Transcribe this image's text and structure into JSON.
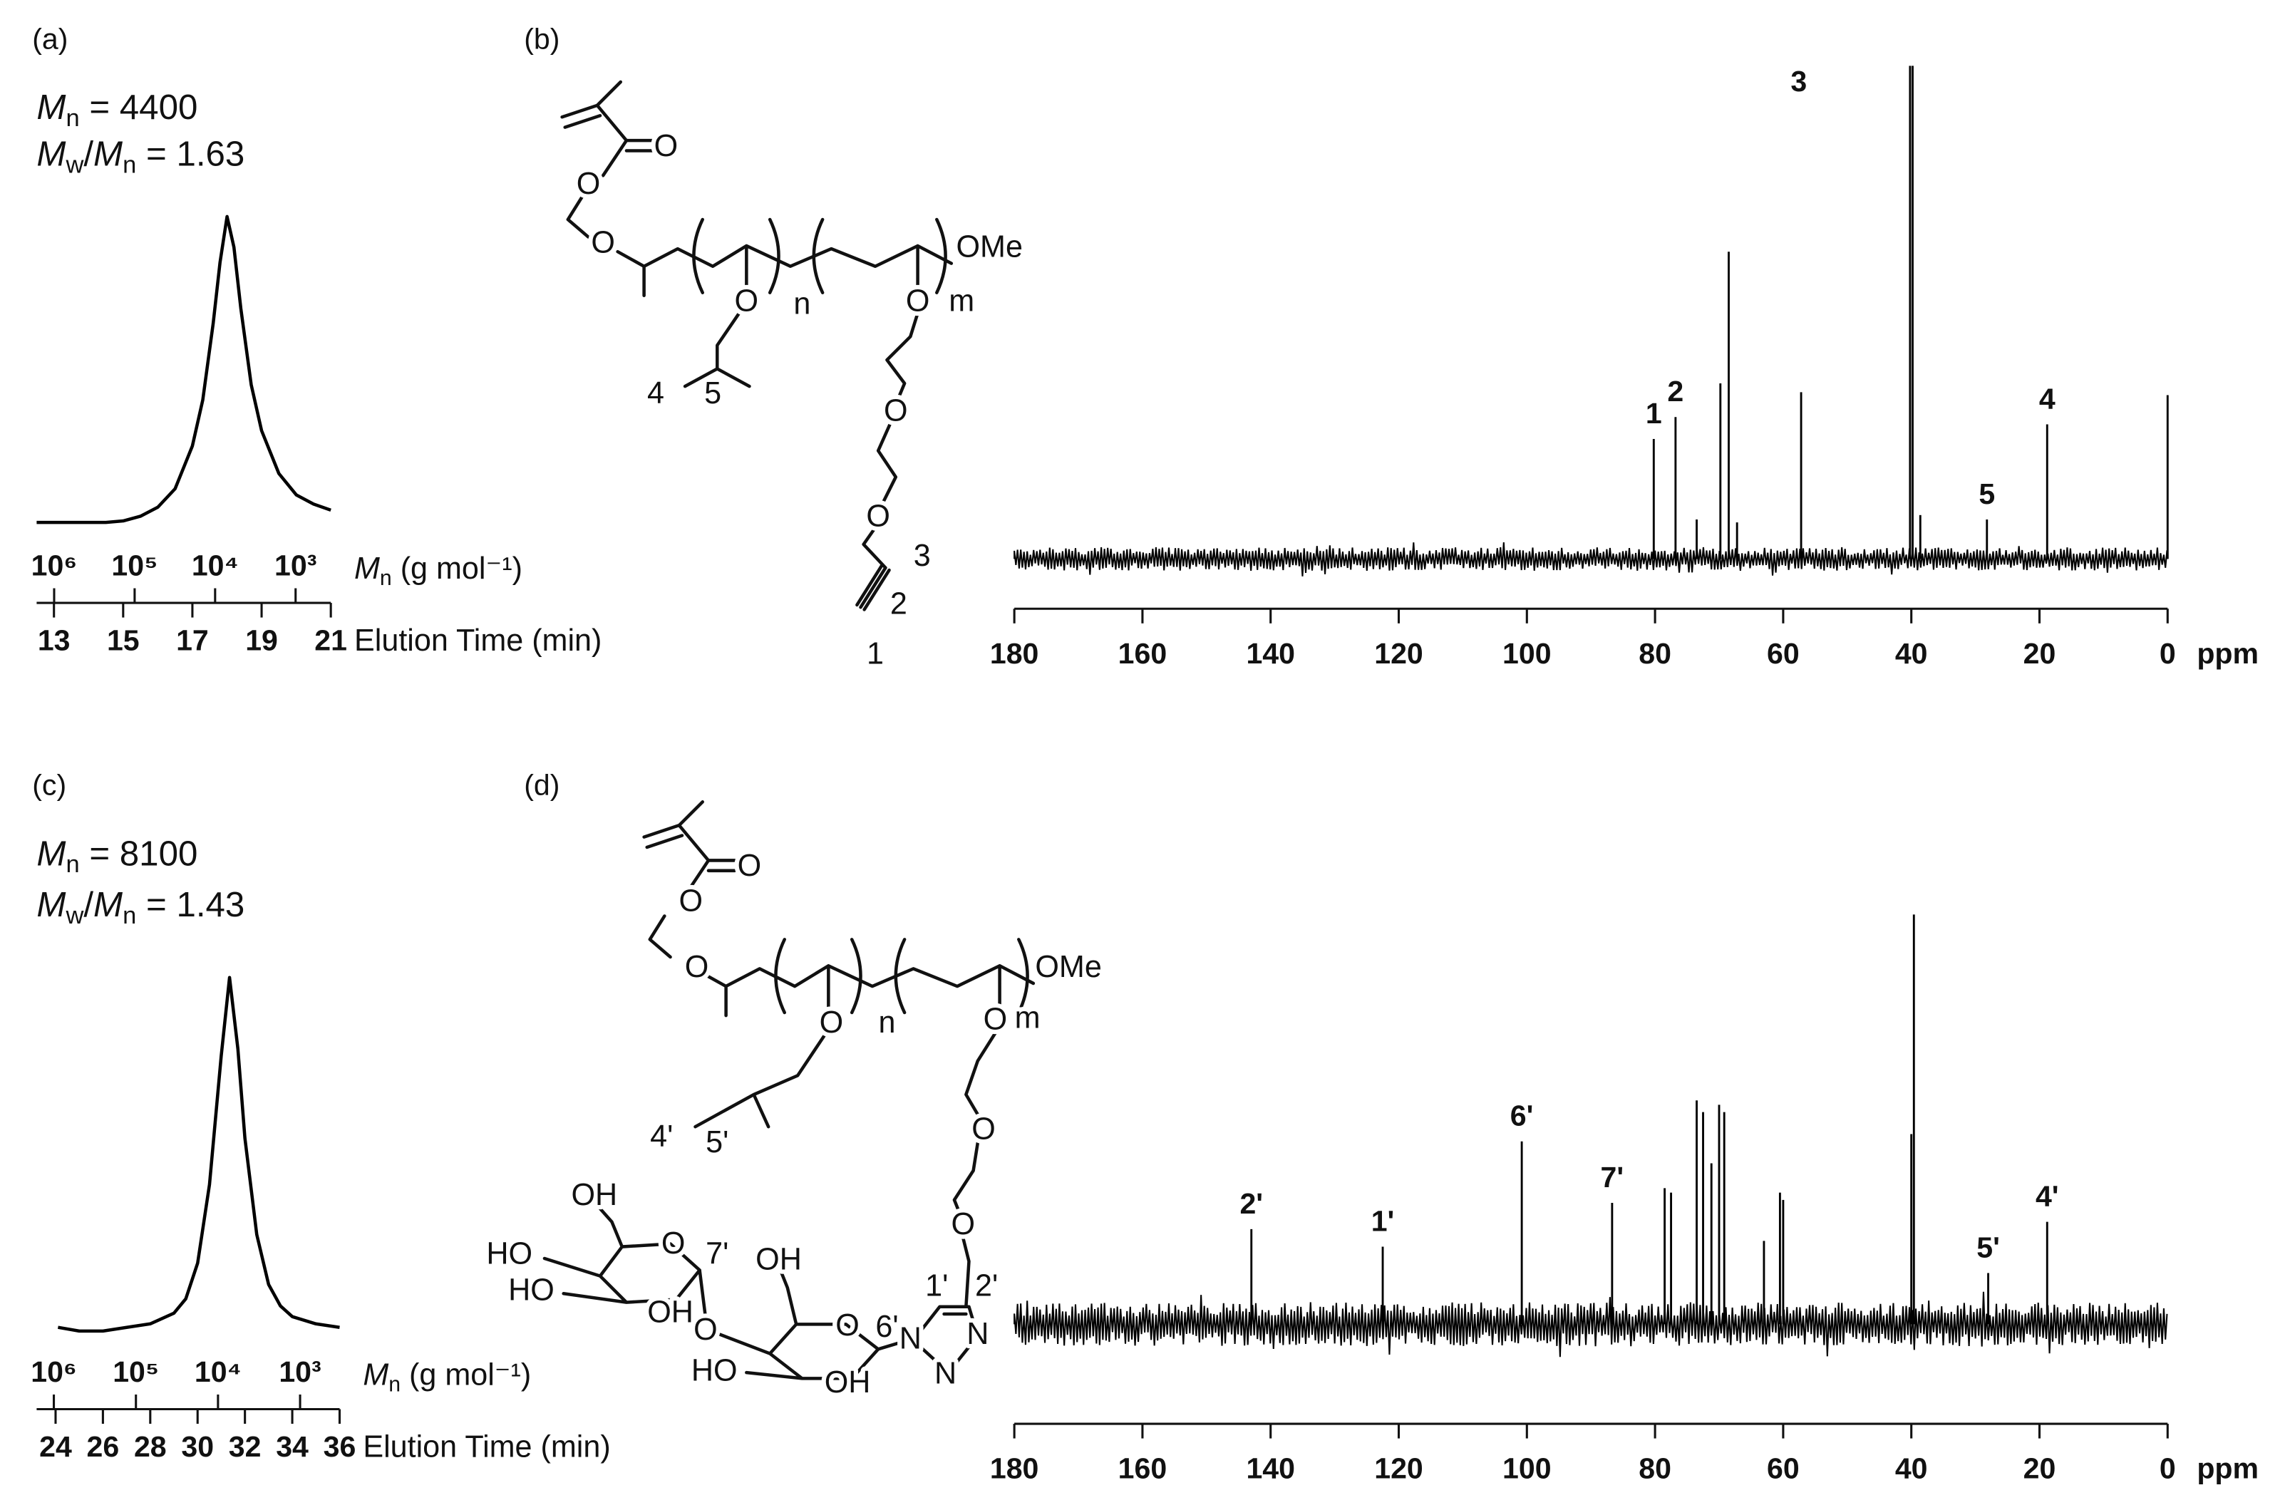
{
  "chart_data": [
    {
      "type": "line",
      "panel": "(a)",
      "annotations": [
        [
          "M",
          "n",
          " = 4400"
        ],
        [
          "M",
          "w",
          "/",
          "M",
          "n",
          " = 1.63"
        ]
      ],
      "x": [
        12.5,
        13,
        14,
        14.5,
        15,
        15.5,
        16,
        16.5,
        17,
        17.3,
        17.6,
        17.8,
        18,
        18.2,
        18.4,
        18.7,
        19,
        19.5,
        20,
        20.5,
        21
      ],
      "values": [
        0,
        0,
        0,
        0,
        0.005,
        0.02,
        0.05,
        0.11,
        0.25,
        0.4,
        0.65,
        0.85,
        1,
        0.9,
        0.7,
        0.45,
        0.3,
        0.16,
        0.09,
        0.06,
        0.04
      ],
      "xlim": [
        12.5,
        21
      ],
      "xticks": [
        13,
        15,
        17,
        19,
        21
      ],
      "xlabel": "Elution Time (min)",
      "x2lim": [
        1650000,
        365
      ],
      "x2scale": "log",
      "x2ticks": [
        {
          "value": 1000000,
          "label": "10⁶"
        },
        {
          "value": 100000,
          "label": "10⁵"
        },
        {
          "value": 10000,
          "label": "10⁴"
        },
        {
          "value": 1000,
          "label": "10³"
        }
      ],
      "x2label": [
        "M",
        "n",
        " (g mol⁻¹)"
      ],
      "ylim": [
        0,
        1
      ],
      "color": "#000000"
    },
    {
      "type": "spectrum",
      "panel": "(b)",
      "x": [
        80.2,
        76.8,
        73.5,
        69.8,
        68.5,
        67.2,
        57.2,
        40.2,
        39.8,
        38.6,
        28.2,
        18.8,
        0
      ],
      "values": [
        82,
        97,
        27,
        120,
        210,
        25,
        114,
        337,
        337,
        30,
        27,
        92,
        112
      ],
      "labels": [
        "1",
        "2",
        null,
        null,
        null,
        null,
        null,
        "3",
        null,
        null,
        "5",
        "4",
        null
      ],
      "noise": 8,
      "xlim": [
        180,
        0
      ],
      "xticks": [
        180,
        160,
        140,
        120,
        100,
        80,
        60,
        40,
        20,
        0
      ],
      "xlabel": "ppm",
      "ylim": [
        -20,
        340
      ],
      "color": "#000000",
      "structure": [
        "O",
        "O",
        "O",
        "OMe",
        "O",
        "n",
        "O",
        "m",
        "4",
        "5",
        "O",
        "O",
        "3",
        "2",
        "1"
      ]
    },
    {
      "type": "line",
      "panel": "(c)",
      "annotations": [
        [
          "M",
          "n",
          " = 8100"
        ],
        [
          "M",
          "w",
          "/",
          "M",
          "n",
          " = 1.43"
        ]
      ],
      "x": [
        24.1,
        25,
        26,
        27,
        28,
        29,
        29.5,
        30,
        30.5,
        31,
        31.35,
        31.7,
        32,
        32.5,
        33,
        33.5,
        34,
        35,
        36
      ],
      "values": [
        0.02,
        0.01,
        0.01,
        0.02,
        0.03,
        0.06,
        0.1,
        0.2,
        0.42,
        0.78,
        1,
        0.8,
        0.55,
        0.28,
        0.14,
        0.08,
        0.05,
        0.03,
        0.02
      ],
      "xlim": [
        23.2,
        36
      ],
      "xticks": [
        24,
        26,
        28,
        30,
        32,
        34,
        36
      ],
      "xlabel": "Elution Time (min)",
      "x2lim": [
        1620000,
        330
      ],
      "x2scale": "log",
      "x2ticks": [
        {
          "value": 1000000,
          "label": "10⁶"
        },
        {
          "value": 100000,
          "label": "10⁵"
        },
        {
          "value": 10000,
          "label": "10⁴"
        },
        {
          "value": 1000,
          "label": "10³"
        }
      ],
      "x2label": [
        "M",
        "n",
        " (g mol⁻¹)"
      ],
      "ylim": [
        0,
        1
      ],
      "color": "#000000"
    },
    {
      "type": "spectrum",
      "panel": "(d)",
      "x": [
        143,
        122.5,
        100.8,
        86.7,
        78.5,
        77.5,
        73.5,
        72.5,
        71.2,
        70,
        69.2,
        63,
        60.5,
        60,
        40,
        39.6,
        28,
        18.8
      ],
      "values": [
        65,
        53,
        125,
        83,
        93,
        90,
        153,
        145,
        110,
        150,
        145,
        57,
        90,
        85,
        130,
        280,
        35,
        70
      ],
      "labels": [
        "2'",
        "1'",
        "6'",
        "7'",
        null,
        null,
        null,
        null,
        null,
        null,
        null,
        null,
        null,
        null,
        null,
        null,
        "5'",
        "4'"
      ],
      "noise": 15,
      "xlim": [
        180,
        0
      ],
      "xticks": [
        180,
        160,
        140,
        120,
        100,
        80,
        60,
        40,
        20,
        0
      ],
      "xlabel": "ppm",
      "ylim": [
        -40,
        300
      ],
      "color": "#000000",
      "structure": [
        "O",
        "O",
        "O",
        "OMe",
        "O",
        "n",
        "O",
        "m",
        "4'",
        "5'",
        "O",
        "O",
        "OH",
        "HO",
        "O",
        "7'",
        "OH",
        "HO",
        "OH",
        "O",
        "O",
        "6'",
        "1'",
        "2'",
        "N",
        "N",
        "HO",
        "OH",
        "N"
      ]
    }
  ]
}
